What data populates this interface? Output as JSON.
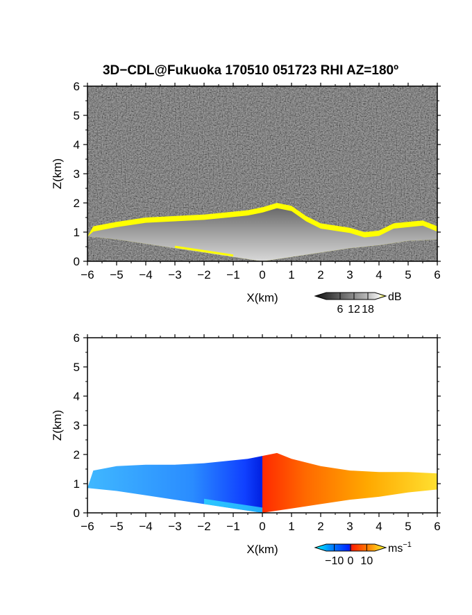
{
  "title": "3D−CDL@Fukuoka 170510 051723 RHI AZ=180º",
  "chart_data": [
    {
      "type": "heatmap",
      "panel": "reflectivity",
      "title": "3D−CDL@Fukuoka 170510 051723 RHI AZ=180º",
      "xlabel": "X(km)",
      "ylabel": "Z(km)",
      "xlim": [
        -6,
        6
      ],
      "ylim": [
        0,
        6
      ],
      "xticks": [
        "−6",
        "−5",
        "−4",
        "−3",
        "−2",
        "−1",
        "0",
        "1",
        "2",
        "3",
        "4",
        "5",
        "6"
      ],
      "yticks": [
        "0",
        "1",
        "2",
        "3",
        "4",
        "5",
        "6"
      ],
      "colorbar": {
        "unit": "dB",
        "ticks": [
          "6",
          "12",
          "18"
        ],
        "range": [
          0,
          21
        ],
        "colors": [
          "#101010",
          "#606060",
          "#b0b0b0",
          "#f0f0f0",
          "#ffff00"
        ]
      },
      "echo_top_km": [
        [
          -5.8,
          1.2
        ],
        [
          -5.0,
          1.35
        ],
        [
          -4.0,
          1.5
        ],
        [
          -3.0,
          1.55
        ],
        [
          -2.0,
          1.6
        ],
        [
          -1.0,
          1.7
        ],
        [
          -0.5,
          1.75
        ],
        [
          0.0,
          1.85
        ],
        [
          0.5,
          2.0
        ],
        [
          1.0,
          1.9
        ],
        [
          1.5,
          1.55
        ],
        [
          2.0,
          1.3
        ],
        [
          3.0,
          1.15
        ],
        [
          3.5,
          1.0
        ],
        [
          4.0,
          1.05
        ],
        [
          4.5,
          1.3
        ],
        [
          5.0,
          1.35
        ],
        [
          5.5,
          1.4
        ],
        [
          6.0,
          1.2
        ]
      ],
      "echo_base_km": [
        [
          -6.0,
          0.85
        ],
        [
          -5.0,
          0.75
        ],
        [
          -4.0,
          0.6
        ],
        [
          -3.0,
          0.45
        ],
        [
          -2.0,
          0.3
        ],
        [
          -1.0,
          0.15
        ],
        [
          0.0,
          0.0
        ],
        [
          1.0,
          0.15
        ],
        [
          2.0,
          0.3
        ],
        [
          3.0,
          0.45
        ],
        [
          4.0,
          0.55
        ],
        [
          5.0,
          0.7
        ],
        [
          6.0,
          0.75
        ]
      ]
    },
    {
      "type": "heatmap",
      "panel": "doppler-velocity",
      "xlabel": "X(km)",
      "ylabel": "Z(km)",
      "xlim": [
        -6,
        6
      ],
      "ylim": [
        0,
        6
      ],
      "xticks": [
        "−6",
        "−5",
        "−4",
        "−3",
        "−2",
        "−1",
        "0",
        "1",
        "2",
        "3",
        "4",
        "5",
        "6"
      ],
      "yticks": [
        "0",
        "1",
        "2",
        "3",
        "4",
        "5",
        "6"
      ],
      "colorbar": {
        "unit": "ms−1",
        "unit_base": "ms",
        "unit_exp": "−1",
        "ticks": [
          "−10",
          "0",
          "10"
        ],
        "range": [
          -15,
          15
        ],
        "colors": [
          "#00ffff",
          "#0090ff",
          "#0020ff",
          "#ff2000",
          "#ff8000",
          "#ffff30"
        ]
      },
      "echo_top_km": [
        [
          -5.8,
          1.45
        ],
        [
          -5.0,
          1.6
        ],
        [
          -4.0,
          1.65
        ],
        [
          -3.0,
          1.65
        ],
        [
          -2.0,
          1.7
        ],
        [
          -1.0,
          1.8
        ],
        [
          -0.5,
          1.85
        ],
        [
          0.0,
          1.95
        ],
        [
          0.5,
          2.05
        ],
        [
          1.0,
          1.85
        ],
        [
          2.0,
          1.6
        ],
        [
          3.0,
          1.45
        ],
        [
          4.0,
          1.4
        ],
        [
          5.0,
          1.4
        ],
        [
          6.0,
          1.35
        ]
      ],
      "echo_base_km": [
        [
          -6.0,
          0.85
        ],
        [
          -5.0,
          0.75
        ],
        [
          -4.0,
          0.6
        ],
        [
          -3.0,
          0.45
        ],
        [
          -2.0,
          0.3
        ],
        [
          -1.0,
          0.15
        ],
        [
          0.0,
          0.0
        ],
        [
          1.0,
          0.15
        ],
        [
          2.0,
          0.3
        ],
        [
          3.0,
          0.45
        ],
        [
          4.0,
          0.55
        ],
        [
          5.0,
          0.7
        ],
        [
          6.0,
          0.8
        ]
      ]
    }
  ]
}
